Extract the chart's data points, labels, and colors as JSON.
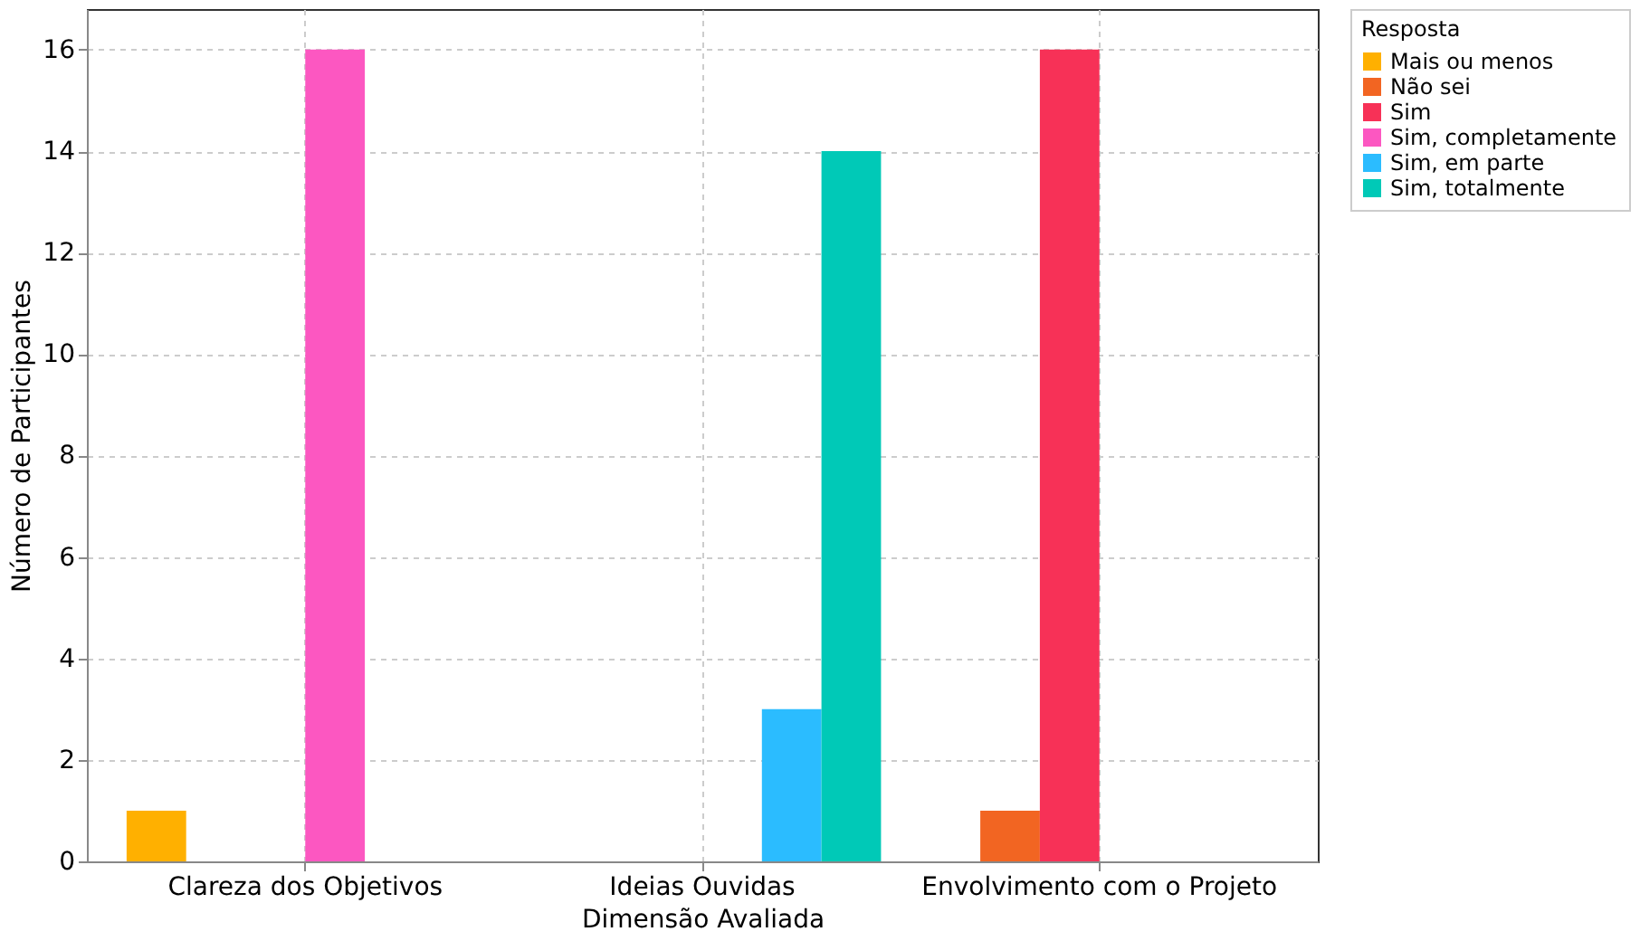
{
  "chart_data": {
    "type": "bar",
    "xlabel": "Dimensão Avaliada",
    "ylabel": "Número de Participantes",
    "legend_title": "Resposta",
    "categories": [
      "Clareza dos Objetivos",
      "Ideias Ouvidas",
      "Envolvimento com o Projeto"
    ],
    "series": [
      {
        "name": "Mais ou menos",
        "color": "#ffb000",
        "values": [
          1,
          null,
          null
        ]
      },
      {
        "name": "Não sei",
        "color": "#f26522",
        "values": [
          null,
          null,
          1
        ]
      },
      {
        "name": "Sim",
        "color": "#f73157",
        "values": [
          null,
          null,
          16
        ]
      },
      {
        "name": "Sim, completamente",
        "color": "#fc57c1",
        "values": [
          16,
          null,
          null
        ]
      },
      {
        "name": "Sim, em parte",
        "color": "#2bbcff",
        "values": [
          null,
          3,
          null
        ]
      },
      {
        "name": "Sim, totalmente",
        "color": "#00c9b7",
        "values": [
          null,
          14,
          null
        ]
      }
    ],
    "ylim": [
      0,
      16.8
    ],
    "yticks": [
      0,
      2,
      4,
      6,
      8,
      10,
      12,
      14,
      16
    ],
    "grid": true,
    "legend": "top right"
  }
}
